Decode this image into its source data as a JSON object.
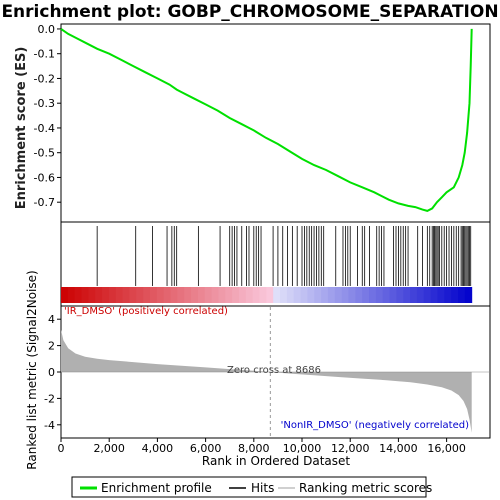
{
  "chart_data": {
    "type": "line",
    "title": "Enrichment plot: GOBP_CHROMOSOME_SEPARATION",
    "top_panel": {
      "ylabel": "Enrichment score (ES)",
      "ylim": [
        -0.78,
        0.02
      ],
      "yticks": [
        0.0,
        -0.1,
        -0.2,
        -0.3,
        -0.4,
        -0.5,
        -0.6,
        -0.7
      ],
      "ytick_labels": [
        "0.0",
        "-0.1",
        "-0.2",
        "-0.3",
        "-0.4",
        "-0.5",
        "-0.6",
        "-0.7"
      ],
      "series": [
        {
          "name": "Enrichment profile",
          "color": "#00e000",
          "x": [
            0,
            300,
            700,
            1100,
            1500,
            2000,
            2500,
            3000,
            3500,
            4000,
            4500,
            4800,
            5000,
            5500,
            6000,
            6500,
            7000,
            7500,
            8000,
            8500,
            9000,
            9500,
            10000,
            10500,
            11000,
            11500,
            12000,
            12500,
            13000,
            13300,
            13600,
            14000,
            14400,
            14700,
            15000,
            15200,
            15400,
            15600,
            15800,
            16000,
            16300,
            16500,
            16650,
            16750,
            16850,
            16950,
            17000,
            17040
          ],
          "y": [
            0.0,
            -0.02,
            -0.04,
            -0.06,
            -0.08,
            -0.1,
            -0.125,
            -0.15,
            -0.175,
            -0.2,
            -0.225,
            -0.245,
            -0.255,
            -0.28,
            -0.305,
            -0.33,
            -0.36,
            -0.385,
            -0.41,
            -0.44,
            -0.465,
            -0.495,
            -0.525,
            -0.55,
            -0.57,
            -0.595,
            -0.62,
            -0.64,
            -0.66,
            -0.675,
            -0.69,
            -0.705,
            -0.715,
            -0.72,
            -0.73,
            -0.735,
            -0.725,
            -0.7,
            -0.68,
            -0.66,
            -0.64,
            -0.6,
            -0.55,
            -0.5,
            -0.42,
            -0.3,
            -0.15,
            0.0
          ]
        }
      ]
    },
    "hits_panel": {
      "legend_label": "Hits",
      "hit_positions": [
        1500,
        3100,
        3800,
        4400,
        4600,
        4700,
        4800,
        5700,
        6600,
        7000,
        7100,
        7200,
        7300,
        7500,
        7700,
        7800,
        8000,
        8100,
        8200,
        8300,
        8800,
        9000,
        9200,
        9400,
        9600,
        9800,
        10000,
        10100,
        10200,
        10300,
        10400,
        10500,
        10600,
        10700,
        10800,
        10900,
        11400,
        11700,
        11800,
        11900,
        12000,
        12300,
        12500,
        12600,
        12800,
        13100,
        13200,
        13300,
        13400,
        13800,
        13900,
        14000,
        14100,
        14200,
        14300,
        14400,
        14800,
        15000,
        15200,
        15300,
        15400,
        15450,
        15500,
        15550,
        15600,
        15650,
        15700,
        15800,
        15900,
        16000,
        16100,
        16200,
        16300,
        16400,
        16500,
        16600,
        16650,
        16700,
        16750,
        16800,
        16850,
        16900,
        16950,
        17000
      ]
    },
    "metric_panel": {
      "ylabel": "Ranked list metric (Signal2Noise)",
      "ylim": [
        -5,
        5
      ],
      "yticks": [
        -4,
        -2,
        0,
        2,
        4
      ],
      "ytick_labels": [
        "-4",
        "-2",
        "0",
        "2",
        "4"
      ],
      "x": [
        0,
        100,
        300,
        600,
        1000,
        1500,
        2000,
        3000,
        4000,
        5000,
        6000,
        7000,
        8000,
        8686,
        9500,
        10500,
        11500,
        12500,
        13500,
        14500,
        15200,
        15800,
        16200,
        16500,
        16700,
        16850,
        16950,
        17040
      ],
      "y": [
        3.2,
        2.4,
        1.8,
        1.4,
        1.15,
        1.0,
        0.9,
        0.75,
        0.6,
        0.48,
        0.35,
        0.22,
        0.1,
        0.0,
        -0.12,
        -0.25,
        -0.38,
        -0.5,
        -0.62,
        -0.78,
        -0.95,
        -1.15,
        -1.4,
        -1.75,
        -2.2,
        -2.8,
        -3.6,
        -4.6
      ],
      "zero_cross_label": "Zero cross at 8686",
      "zero_cross": 8686,
      "pos_label": "'IR_DMSO' (positively correlated)",
      "neg_label": "'NonIR_DMSO' (negatively correlated)"
    },
    "xaxis": {
      "xlabel": "Rank in Ordered Dataset",
      "xlim": [
        0,
        17800
      ],
      "xticks": [
        0,
        2000,
        4000,
        6000,
        8000,
        10000,
        12000,
        14000,
        16000
      ],
      "xtick_labels": [
        "0",
        "2,000",
        "4,000",
        "6,000",
        "8,000",
        "10,000",
        "12,000",
        "14,000",
        "16,000"
      ],
      "n_genes": 17040
    },
    "legend": {
      "entries": [
        "Enrichment profile",
        "Hits",
        "Ranking metric scores"
      ]
    },
    "colors": {
      "profile": "#00e000",
      "pos_color": "#cc0000",
      "neg_color": "#0000cc",
      "metric_fill": "#b0b0b0"
    }
  }
}
